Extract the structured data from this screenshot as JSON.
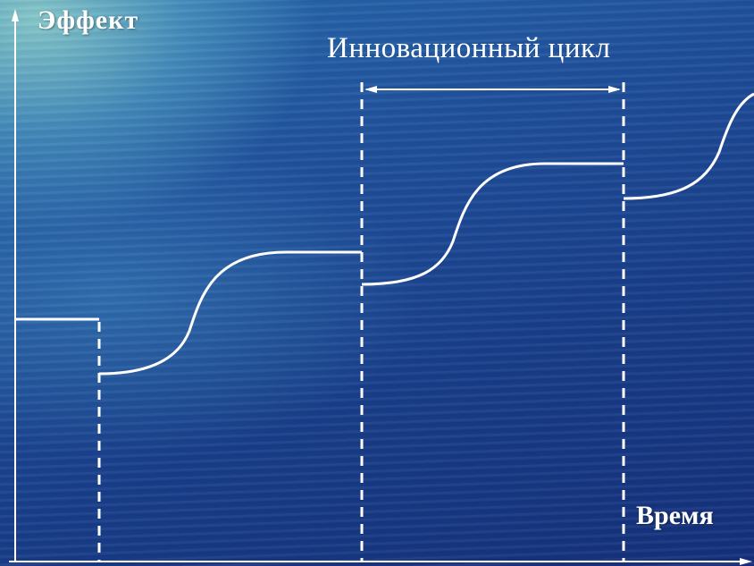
{
  "axes": {
    "y_label": "Эффект",
    "x_label": "Время"
  },
  "annotation": {
    "cycle_label": "Инновационный цикл"
  },
  "colors": {
    "lines": "#ffffff",
    "background_dark": "#14307a",
    "background_light": "#9fd8cf"
  }
}
